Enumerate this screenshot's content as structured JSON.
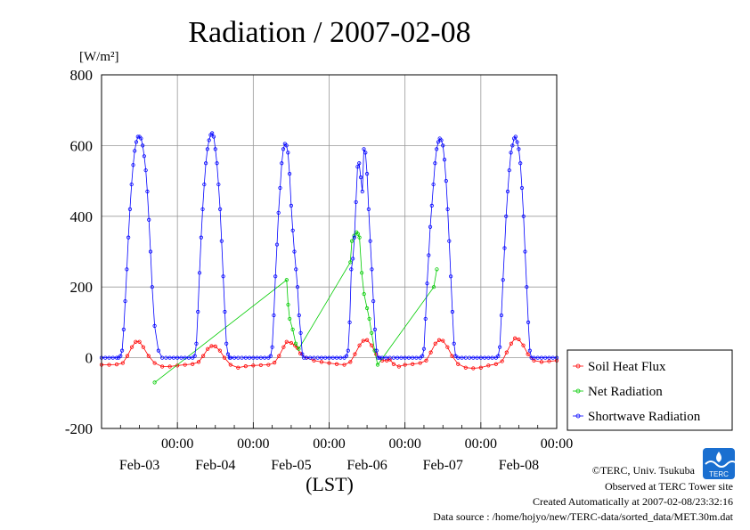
{
  "chart_data": {
    "type": "scatter",
    "title": "Radiation / 2007-02-08",
    "ylabel": "[W/m²]",
    "xlabel": "(LST)",
    "ylim": [
      -200,
      800
    ],
    "yticks": [
      -200,
      0,
      200,
      400,
      600,
      800
    ],
    "ytick_labels": [
      "-200",
      "0",
      "200",
      "400",
      "600",
      "800"
    ],
    "x_unit": "day (LST, 0 = 2007-02-03 00:00)",
    "xlim": [
      -1,
      5
    ],
    "xtick_time_labels": [
      "00:00",
      "00:00",
      "00:00",
      "00:00",
      "00:00",
      "00:00"
    ],
    "xtick_date_labels": [
      "Feb-03",
      "Feb-04",
      "Feb-05",
      "Feb-06",
      "Feb-07",
      "Feb-08"
    ],
    "grid": true,
    "legend_position": "right",
    "series": [
      {
        "name": "Soil Heat Flux",
        "color": "#ff0000",
        "points": [
          [
            -1.0,
            -20
          ],
          [
            -0.9,
            -20
          ],
          [
            -0.8,
            -19
          ],
          [
            -0.72,
            -15
          ],
          [
            -0.66,
            5
          ],
          [
            -0.6,
            30
          ],
          [
            -0.55,
            45
          ],
          [
            -0.5,
            45
          ],
          [
            -0.45,
            30
          ],
          [
            -0.38,
            5
          ],
          [
            -0.3,
            -15
          ],
          [
            -0.2,
            -25
          ],
          [
            -0.1,
            -25
          ],
          [
            0.0,
            -22
          ],
          [
            0.1,
            -20
          ],
          [
            0.2,
            -18
          ],
          [
            0.28,
            -12
          ],
          [
            0.34,
            5
          ],
          [
            0.4,
            25
          ],
          [
            0.45,
            33
          ],
          [
            0.5,
            32
          ],
          [
            0.56,
            20
          ],
          [
            0.62,
            0
          ],
          [
            0.7,
            -20
          ],
          [
            0.8,
            -28
          ],
          [
            0.9,
            -24
          ],
          [
            1.0,
            -22
          ],
          [
            1.1,
            -21
          ],
          [
            1.2,
            -20
          ],
          [
            1.28,
            -14
          ],
          [
            1.34,
            5
          ],
          [
            1.4,
            30
          ],
          [
            1.44,
            45
          ],
          [
            1.5,
            42
          ],
          [
            1.55,
            35
          ],
          [
            1.58,
            28
          ],
          [
            1.62,
            12
          ],
          [
            1.7,
            0
          ],
          [
            1.8,
            -8
          ],
          [
            1.9,
            -12
          ],
          [
            2.0,
            -15
          ],
          [
            2.1,
            -18
          ],
          [
            2.2,
            -20
          ],
          [
            2.28,
            -12
          ],
          [
            2.34,
            10
          ],
          [
            2.4,
            35
          ],
          [
            2.45,
            48
          ],
          [
            2.5,
            50
          ],
          [
            2.56,
            35
          ],
          [
            2.62,
            10
          ],
          [
            2.7,
            -8
          ],
          [
            2.76,
            -8
          ],
          [
            2.8,
            -5
          ],
          [
            2.85,
            -18
          ],
          [
            2.92,
            -25
          ],
          [
            3.0,
            -20
          ],
          [
            3.1,
            -18
          ],
          [
            3.2,
            -15
          ],
          [
            3.28,
            -8
          ],
          [
            3.34,
            15
          ],
          [
            3.4,
            40
          ],
          [
            3.45,
            50
          ],
          [
            3.5,
            48
          ],
          [
            3.56,
            30
          ],
          [
            3.62,
            5
          ],
          [
            3.7,
            -18
          ],
          [
            3.8,
            -28
          ],
          [
            3.9,
            -30
          ],
          [
            4.0,
            -28
          ],
          [
            4.1,
            -22
          ],
          [
            4.2,
            -18
          ],
          [
            4.28,
            -10
          ],
          [
            4.34,
            15
          ],
          [
            4.4,
            40
          ],
          [
            4.45,
            55
          ],
          [
            4.5,
            52
          ],
          [
            4.56,
            35
          ],
          [
            4.62,
            10
          ],
          [
            4.7,
            -8
          ],
          [
            4.8,
            -12
          ],
          [
            4.9,
            -10
          ],
          [
            5.0,
            -8
          ]
        ]
      },
      {
        "name": "Net Radiation",
        "color": "#00cc00",
        "points": [
          [
            -0.3,
            -70
          ],
          [
            1.44,
            220
          ],
          [
            1.46,
            150
          ],
          [
            1.48,
            110
          ],
          [
            1.52,
            80
          ],
          [
            1.56,
            40
          ],
          [
            1.6,
            25
          ],
          [
            2.28,
            270
          ],
          [
            2.3,
            330
          ],
          [
            2.33,
            345
          ],
          [
            2.36,
            355
          ],
          [
            2.38,
            350
          ],
          [
            2.4,
            340
          ],
          [
            2.43,
            240
          ],
          [
            2.46,
            180
          ],
          [
            2.5,
            140
          ],
          [
            2.53,
            110
          ],
          [
            2.56,
            70
          ],
          [
            2.6,
            20
          ],
          [
            2.64,
            -20
          ],
          [
            3.38,
            200
          ],
          [
            3.42,
            250
          ]
        ]
      },
      {
        "name": "Shortwave Radiation",
        "color": "#0000ff",
        "days": [
          {
            "x": [
              -1.0,
              -0.95,
              -0.9,
              -0.85,
              -0.8,
              -0.775,
              -0.75,
              -0.729,
              -0.708,
              -0.688,
              -0.667,
              -0.646,
              -0.625,
              -0.604,
              -0.583,
              -0.563,
              -0.542,
              -0.521,
              -0.5,
              -0.479,
              -0.458,
              -0.438,
              -0.417,
              -0.396,
              -0.375,
              -0.354,
              -0.333,
              -0.3,
              -0.25,
              -0.2
            ],
            "y": [
              0,
              0,
              0,
              0,
              0,
              0,
              5,
              20,
              80,
              160,
              250,
              340,
              420,
              490,
              545,
              585,
              610,
              625,
              625,
              620,
              600,
              570,
              530,
              470,
              390,
              300,
              200,
              90,
              20,
              0
            ]
          },
          {
            "x": [
              -0.15,
              -0.1,
              -0.05,
              0.0,
              0.05,
              0.1,
              0.15,
              0.2,
              0.229,
              0.25,
              0.271,
              0.292,
              0.313,
              0.333,
              0.354,
              0.375,
              0.396,
              0.417,
              0.438,
              0.458,
              0.479,
              0.5,
              0.521,
              0.542,
              0.563,
              0.583,
              0.604,
              0.625,
              0.646,
              0.667,
              0.688,
              0.7,
              0.75,
              0.8
            ],
            "y": [
              0,
              0,
              0,
              0,
              0,
              0,
              0,
              0,
              5,
              40,
              130,
              240,
              340,
              420,
              490,
              550,
              590,
              615,
              630,
              635,
              625,
              590,
              550,
              490,
              420,
              330,
              230,
              130,
              40,
              10,
              0,
              0,
              0,
              0
            ]
          },
          {
            "x": [
              0.85,
              0.9,
              0.95,
              1.0,
              1.05,
              1.1,
              1.15,
              1.2,
              1.229,
              1.25,
              1.271,
              1.292,
              1.313,
              1.333,
              1.354,
              1.375,
              1.396,
              1.417,
              1.438,
              1.458,
              1.479,
              1.5,
              1.521,
              1.542,
              1.563,
              1.583,
              1.604,
              1.625,
              1.646,
              1.667,
              1.7,
              1.75,
              1.8
            ],
            "y": [
              0,
              0,
              0,
              0,
              0,
              0,
              0,
              0,
              5,
              30,
              120,
              230,
              320,
              410,
              480,
              550,
              590,
              605,
              600,
              580,
              520,
              430,
              360,
              300,
              250,
              200,
              120,
              70,
              10,
              0,
              0,
              0,
              0
            ]
          },
          {
            "x": [
              1.85,
              1.9,
              1.95,
              2.0,
              2.05,
              2.1,
              2.15,
              2.2,
              2.229,
              2.25,
              2.271,
              2.292,
              2.313,
              2.333,
              2.354,
              2.375,
              2.396,
              2.417,
              2.438,
              2.458,
              2.479,
              2.5,
              2.521,
              2.542,
              2.563,
              2.583,
              2.604,
              2.625,
              2.646,
              2.667,
              2.7,
              2.75,
              2.8
            ],
            "y": [
              0,
              0,
              0,
              0,
              0,
              0,
              0,
              0,
              5,
              20,
              100,
              250,
              280,
              340,
              440,
              540,
              550,
              510,
              470,
              590,
              580,
              520,
              420,
              330,
              250,
              160,
              80,
              20,
              0,
              0,
              0,
              0,
              0
            ]
          },
          {
            "x": [
              2.85,
              2.9,
              2.95,
              3.0,
              3.05,
              3.1,
              3.15,
              3.2,
              3.229,
              3.25,
              3.271,
              3.292,
              3.313,
              3.333,
              3.354,
              3.375,
              3.396,
              3.417,
              3.438,
              3.458,
              3.479,
              3.5,
              3.521,
              3.542,
              3.563,
              3.583,
              3.604,
              3.625,
              3.646,
              3.667,
              3.7,
              3.75,
              3.8
            ],
            "y": [
              0,
              0,
              0,
              0,
              0,
              0,
              0,
              0,
              5,
              25,
              110,
              210,
              290,
              370,
              430,
              490,
              550,
              590,
              610,
              620,
              615,
              600,
              560,
              500,
              420,
              330,
              230,
              130,
              40,
              5,
              0,
              0,
              0
            ]
          },
          {
            "x": [
              3.85,
              3.9,
              3.95,
              4.0,
              4.05,
              4.1,
              4.15,
              4.2,
              4.229,
              4.25,
              4.271,
              4.292,
              4.313,
              4.333,
              4.354,
              4.375,
              4.396,
              4.417,
              4.438,
              4.458,
              4.479,
              4.5,
              4.521,
              4.542,
              4.563,
              4.583,
              4.604,
              4.625,
              4.646,
              4.667,
              4.7,
              4.75,
              4.8,
              4.85,
              4.9,
              4.95,
              5.0
            ],
            "y": [
              0,
              0,
              0,
              0,
              0,
              0,
              0,
              0,
              5,
              30,
              120,
              220,
              310,
              400,
              470,
              530,
              580,
              600,
              620,
              625,
              610,
              590,
              550,
              480,
              400,
              300,
              200,
              100,
              20,
              0,
              0,
              0,
              0,
              0,
              0,
              0,
              0
            ]
          }
        ]
      }
    ]
  },
  "footer": {
    "logo_text": "TERC",
    "copyright": "©TERC, Univ. Tsukuba",
    "observed": "Observed at TERC Tower site",
    "created": "Created Automatically at 2007-02-08/23:32:16",
    "source": "Data source : /home/hojyo/new/TERC-data/sorted_data/MET.30m.dat"
  }
}
